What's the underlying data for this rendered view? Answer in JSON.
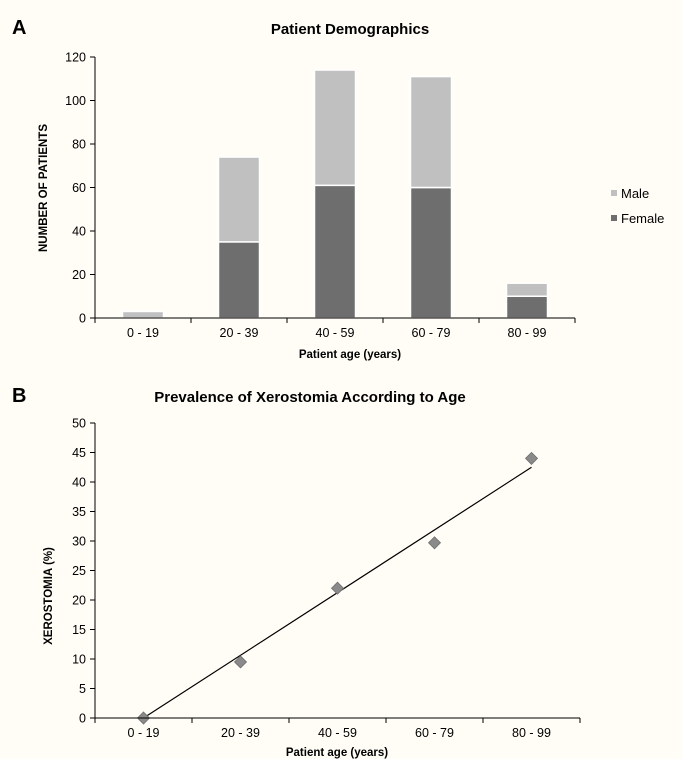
{
  "chart_data": [
    {
      "type": "bar",
      "panel": "A",
      "stacked": true,
      "title": "Patient Demographics",
      "xlabel": "Patient age (years)",
      "ylabel": "NUMBER OF PATIENTS",
      "categories": [
        "0 - 19",
        "20 - 39",
        "40 - 59",
        "60 - 79",
        "80 - 99"
      ],
      "series": [
        {
          "name": "Female",
          "values": [
            0,
            35,
            61,
            60,
            10
          ],
          "color": "#6e6e6e"
        },
        {
          "name": "Male",
          "values": [
            3,
            39,
            53,
            51,
            6
          ],
          "color": "#c0c0c0"
        }
      ],
      "ylim": [
        0,
        120
      ],
      "yticks": [
        0,
        20,
        40,
        60,
        80,
        100,
        120
      ],
      "legend": {
        "placement": "right",
        "order": [
          "Male",
          "Female"
        ]
      },
      "grid": false
    },
    {
      "type": "scatter",
      "panel": "B",
      "title": "Prevalence of Xerostomia According to Age",
      "xlabel": "Patient age (years)",
      "ylabel": "XEROSTOMIA (%)",
      "categories": [
        "0 - 19",
        "20 - 39",
        "40 - 59",
        "60 - 79",
        "80 - 99"
      ],
      "values": [
        0,
        9.5,
        22,
        29.7,
        44
      ],
      "trendline": {
        "type": "linear",
        "start": 0,
        "end": 42.5
      },
      "ylim": [
        0,
        50
      ],
      "yticks": [
        0,
        5,
        10,
        15,
        20,
        25,
        30,
        35,
        40,
        45,
        50
      ],
      "marker": {
        "shape": "diamond",
        "color": "#8a8a8a"
      },
      "grid": false
    }
  ]
}
